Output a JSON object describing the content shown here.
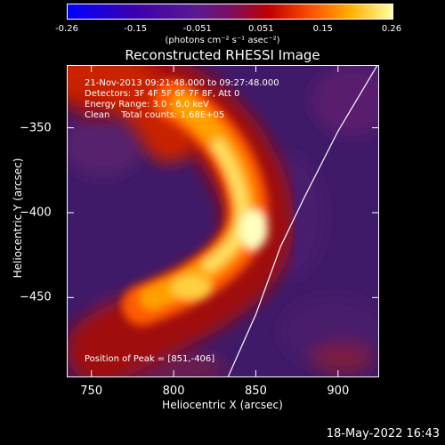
{
  "chart_data": {
    "type": "heatmap",
    "title": "Reconstructed RHESSI Image",
    "xlabel": "Heliocentric X (arcsec)",
    "ylabel": "Heliocentric Y (arcsec)",
    "xlim": [
      735,
      925
    ],
    "ylim": [
      -497,
      -313
    ],
    "x_ticks": [
      750,
      800,
      850,
      900
    ],
    "y_ticks": [
      -350,
      -400,
      -450
    ],
    "colorbar": {
      "label": "(photons cm⁻² s⁻¹ asec⁻²)",
      "range": [
        -0.26,
        0.26
      ],
      "ticks": [
        "-0.26",
        "-0.15",
        "-0.051",
        "0.051",
        "0.15",
        "0.26"
      ]
    },
    "annotations": {
      "time": "21-Nov-2013 09:21:48.000 to 09:27:48.000",
      "detectors": "Detectors: 3F 4F 5F 6F 7F 8F, Att 0",
      "energy": "Energy Range: 3.0 - 6.0 keV",
      "clean": "Clean    Total counts: 1.68E+05",
      "peak": "Position of Peak = [851,-406]"
    },
    "peak": [
      851,
      -406
    ],
    "limb_points": [
      [
        833,
        -497
      ],
      [
        850,
        -460
      ],
      [
        865,
        -420
      ],
      [
        880,
        -390
      ],
      [
        900,
        -352
      ],
      [
        924,
        -313
      ]
    ]
  },
  "footer": {
    "date": "18-May-2022 16:43"
  },
  "colors": {
    "background": "#000000",
    "text": "#ffffff"
  }
}
